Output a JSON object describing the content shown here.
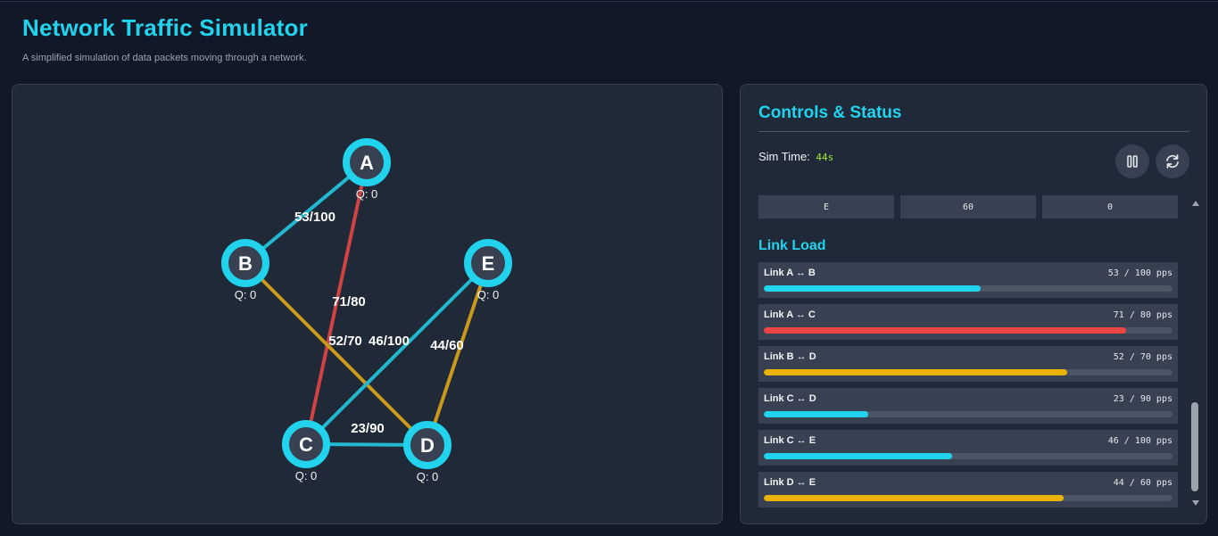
{
  "header": {
    "title": "Network Traffic Simulator",
    "subtitle": "A simplified simulation of data packets moving through a network."
  },
  "network": {
    "nodes": [
      {
        "id": "A",
        "queue_label": "Q: 0"
      },
      {
        "id": "B",
        "queue_label": "Q: 0"
      },
      {
        "id": "C",
        "queue_label": "Q: 0"
      },
      {
        "id": "D",
        "queue_label": "Q: 0"
      },
      {
        "id": "E",
        "queue_label": "Q: 0"
      }
    ],
    "links": [
      {
        "from": "A",
        "to": "B",
        "label": "53/100",
        "load": 53,
        "capacity": 100,
        "color": "#22b8cf"
      },
      {
        "from": "A",
        "to": "C",
        "label": "71/80",
        "load": 71,
        "capacity": 80,
        "color": "#d14343"
      },
      {
        "from": "B",
        "to": "D",
        "label": "52/70",
        "load": 52,
        "capacity": 70,
        "color": "#c9991a"
      },
      {
        "from": "C",
        "to": "D",
        "label": "23/90",
        "load": 23,
        "capacity": 90,
        "color": "#22b8cf"
      },
      {
        "from": "C",
        "to": "E",
        "label": "46/100",
        "load": 46,
        "capacity": 100,
        "color": "#22b8cf"
      },
      {
        "from": "D",
        "to": "E",
        "label": "44/60",
        "load": 44,
        "capacity": 60,
        "color": "#c9991a"
      }
    ],
    "node_color": "#22d3ee",
    "node_fill": "#1f2937"
  },
  "controls": {
    "title": "Controls & Status",
    "sim_time_label": "Sim Time:",
    "sim_time_value": "44s",
    "pause_icon": "pause-icon",
    "reset_icon": "refresh-icon"
  },
  "node_table_row": [
    "E",
    "60",
    "0"
  ],
  "link_load": {
    "title": "Link Load",
    "items": [
      {
        "name": "Link A ↔ B",
        "value": "53 / 100 pps",
        "fraction": 0.53,
        "color": "#22d3ee"
      },
      {
        "name": "Link A ↔ C",
        "value": "71 / 80 pps",
        "fraction": 0.8875,
        "color": "#ef4444"
      },
      {
        "name": "Link B ↔ D",
        "value": "52 / 70 pps",
        "fraction": 0.7429,
        "color": "#eab308"
      },
      {
        "name": "Link C ↔ D",
        "value": "23 / 90 pps",
        "fraction": 0.2556,
        "color": "#22d3ee"
      },
      {
        "name": "Link C ↔ E",
        "value": "46 / 100 pps",
        "fraction": 0.46,
        "color": "#22d3ee"
      },
      {
        "name": "Link D ↔ E",
        "value": "44 / 60 pps",
        "fraction": 0.7333,
        "color": "#eab308"
      }
    ]
  }
}
